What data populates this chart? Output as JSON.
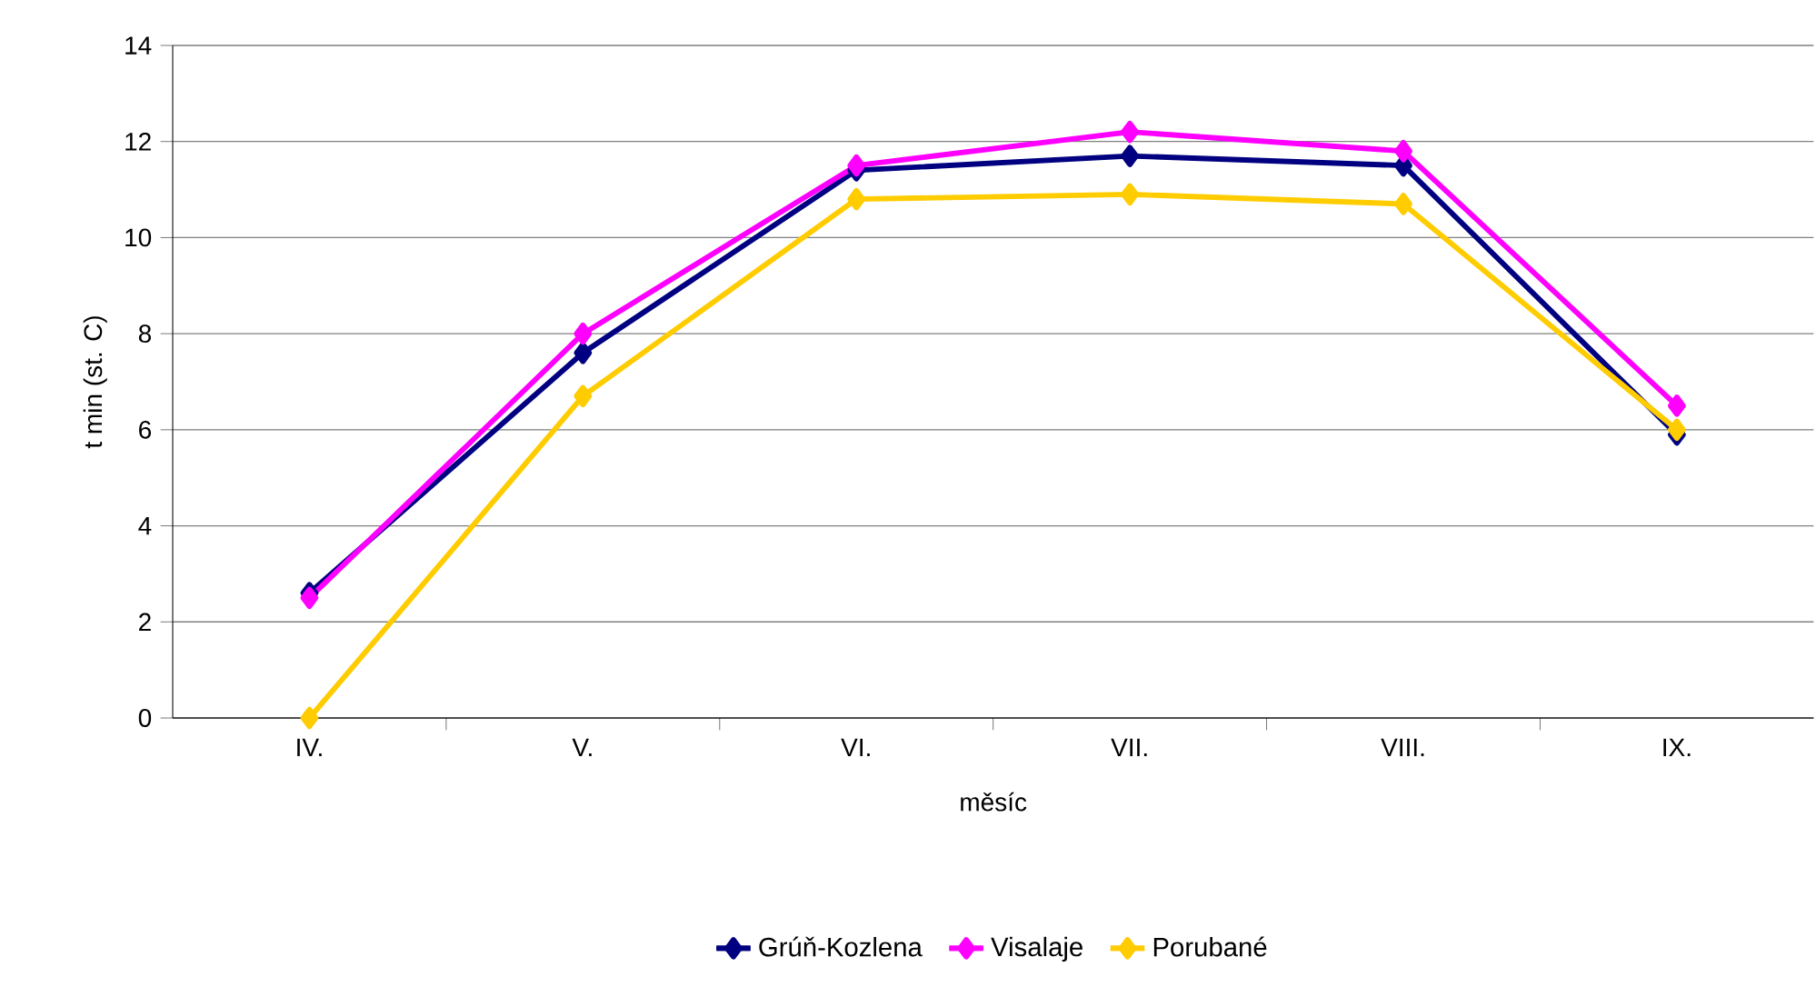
{
  "chart_data": {
    "type": "line",
    "xlabel": "měsíc",
    "ylabel": "t min (st. C)",
    "categories": [
      "IV.",
      "V.",
      "VI.",
      "VII.",
      "VIII.",
      "IX."
    ],
    "series": [
      {
        "name": "Grúň-Kozlena",
        "color": "#000080",
        "values": [
          2.6,
          7.6,
          11.4,
          11.7,
          11.5,
          5.9
        ]
      },
      {
        "name": "Visalaje",
        "color": "#ff00ff",
        "values": [
          2.5,
          8.0,
          11.5,
          12.2,
          11.8,
          6.5
        ]
      },
      {
        "name": "Porubané",
        "color": "#ffcc00",
        "values": [
          0,
          6.7,
          10.8,
          10.9,
          10.7,
          6.0
        ]
      }
    ],
    "ylim": [
      0,
      14
    ],
    "yticks": [
      0,
      2,
      4,
      6,
      8,
      10,
      12,
      14
    ],
    "grid": "y",
    "legend": "bottom",
    "marker": "diamond",
    "line_style": "solid"
  }
}
